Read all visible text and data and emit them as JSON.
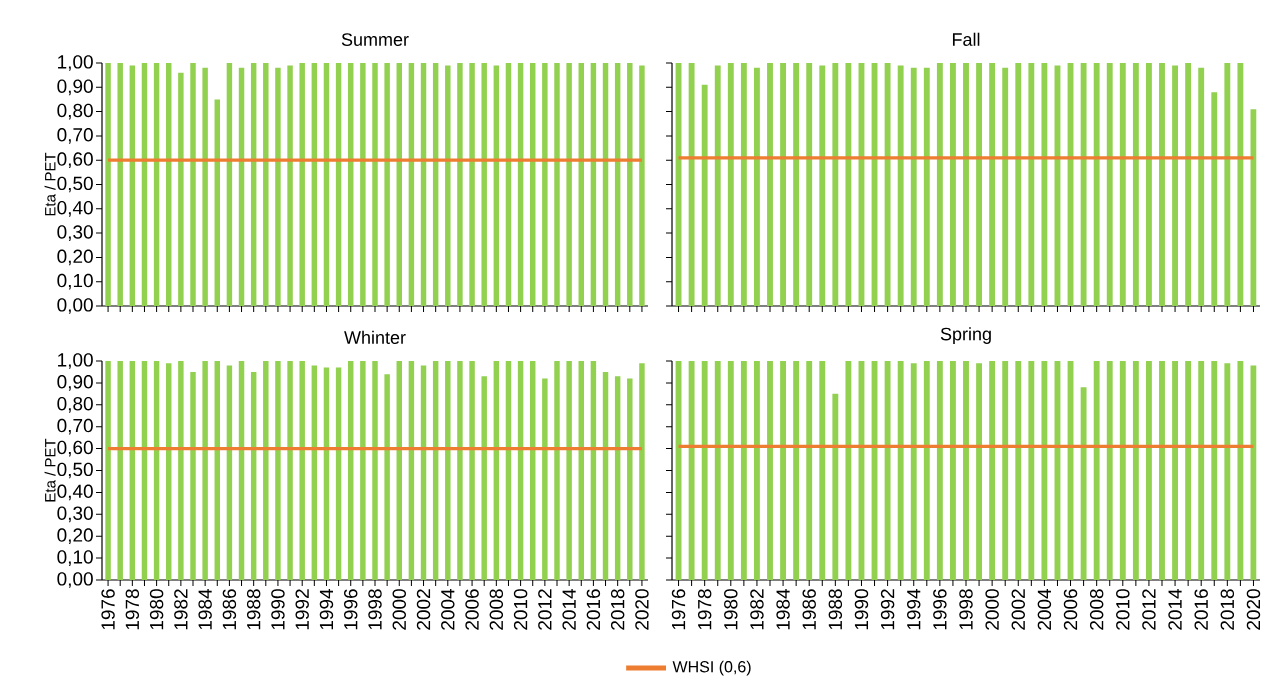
{
  "chart_data": [
    {
      "type": "bar",
      "title": "Summer",
      "ylabel": "Eta / PET",
      "tick_labels": "y",
      "categories": [
        "1976",
        null,
        "1978",
        null,
        "1980",
        null,
        "1982",
        null,
        "1984",
        null,
        "1986",
        null,
        "1988",
        null,
        "1990",
        null,
        "1992",
        null,
        "1994",
        null,
        "1996",
        null,
        "1998",
        null,
        "2000",
        null,
        "2002",
        null,
        "2004",
        null,
        "2006",
        null,
        "2008",
        null,
        "2010",
        null,
        "2012",
        null,
        "2014",
        null,
        "2016",
        null,
        "2018",
        null,
        "2020"
      ],
      "ylim": [
        0,
        1
      ],
      "yticks": [
        {
          "value": 0,
          "label": "0,00"
        },
        {
          "value": 0.1,
          "label": "0,10"
        },
        {
          "value": 0.2,
          "label": "0,20"
        },
        {
          "value": 0.3,
          "label": "0,30"
        },
        {
          "value": 0.4,
          "label": "0,40"
        },
        {
          "value": 0.5,
          "label": "0,50"
        },
        {
          "value": 0.6,
          "label": "0,60"
        },
        {
          "value": 0.7,
          "label": "0,70"
        },
        {
          "value": 0.8,
          "label": "0,80"
        },
        {
          "value": 0.9,
          "label": "0,90"
        },
        {
          "value": 1,
          "label": "1,00"
        }
      ],
      "series": [
        {
          "color": "#92d050",
          "values": [
            1,
            1,
            0.99,
            1,
            1,
            1,
            0.96,
            1,
            0.98,
            0.85,
            1,
            0.98,
            1,
            1,
            0.98,
            0.99,
            1,
            1,
            1,
            1,
            1,
            1,
            1,
            1,
            1,
            1,
            1,
            1,
            0.99,
            1,
            1,
            1,
            0.99,
            1,
            1,
            1,
            1,
            1,
            1,
            1,
            1,
            1,
            1,
            1,
            0.99
          ]
        },
        {
          "type": "line",
          "color": "#ed7d31",
          "values": [
            0.6,
            0.6,
            0.6,
            0.6,
            0.6,
            0.6,
            0.6,
            0.6,
            0.6,
            0.6,
            0.6,
            0.6,
            0.6,
            0.6,
            0.6,
            0.6,
            0.6,
            0.6,
            0.6,
            0.6,
            0.6,
            0.6,
            0.6,
            0.6,
            0.6,
            0.6,
            0.6,
            0.6,
            0.6,
            0.6,
            0.6,
            0.6,
            0.6,
            0.6,
            0.6,
            0.6,
            0.6,
            0.6,
            0.6,
            0.6,
            0.6,
            0.6,
            0.6,
            0.6,
            0.6
          ]
        }
      ]
    },
    {
      "type": "bar",
      "title": "Fall",
      "tick_labels": false,
      "categories": [
        "1976",
        null,
        "1978",
        null,
        "1980",
        null,
        "1982",
        null,
        "1984",
        null,
        "1986",
        null,
        "1988",
        null,
        "1990",
        null,
        "1992",
        null,
        "1994",
        null,
        "1996",
        null,
        "1998",
        null,
        "2000",
        null,
        "2002",
        null,
        "2004",
        null,
        "2006",
        null,
        "2008",
        null,
        "2010",
        null,
        "2012",
        null,
        "2014",
        null,
        "2016",
        null,
        "2018",
        null,
        "2020"
      ],
      "ylim": [
        0,
        1
      ],
      "yticks": [
        {
          "value": 0,
          "label": null
        },
        {
          "value": 0.1,
          "label": null
        },
        {
          "value": 0.2,
          "label": null
        },
        {
          "value": 0.3,
          "label": null
        },
        {
          "value": 0.4,
          "label": null
        },
        {
          "value": 0.5,
          "label": null
        },
        {
          "value": 0.6,
          "label": null
        },
        {
          "value": 0.7,
          "label": null
        },
        {
          "value": 0.8,
          "label": null
        },
        {
          "value": 0.9,
          "label": null
        },
        {
          "value": 1,
          "label": null
        }
      ],
      "series": [
        {
          "color": "#92d050",
          "values": [
            1,
            1,
            0.91,
            0.99,
            1,
            1,
            0.98,
            1,
            1,
            1,
            1,
            0.99,
            1,
            1,
            1,
            1,
            1,
            0.99,
            0.98,
            0.98,
            1,
            1,
            1,
            1,
            1,
            0.98,
            1,
            1,
            1,
            0.99,
            1,
            1,
            1,
            1,
            1,
            1,
            1,
            1,
            0.99,
            1,
            0.98,
            0.88,
            1,
            1,
            0.81
          ]
        },
        {
          "type": "line",
          "color": "#ed7d31",
          "values": [
            0.61,
            0.61,
            0.61,
            0.61,
            0.61,
            0.61,
            0.61,
            0.61,
            0.61,
            0.61,
            0.61,
            0.61,
            0.61,
            0.61,
            0.61,
            0.61,
            0.61,
            0.61,
            0.61,
            0.61,
            0.61,
            0.61,
            0.61,
            0.61,
            0.61,
            0.61,
            0.61,
            0.61,
            0.61,
            0.61,
            0.61,
            0.61,
            0.61,
            0.61,
            0.61,
            0.61,
            0.61,
            0.61,
            0.61,
            0.61,
            0.61,
            0.61,
            0.61,
            0.61,
            0.61
          ]
        }
      ]
    },
    {
      "type": "bar",
      "title": "Whinter",
      "ylabel": "Eta / PET",
      "categories": [
        "1976",
        null,
        "1978",
        null,
        "1980",
        null,
        "1982",
        null,
        "1984",
        null,
        "1986",
        null,
        "1988",
        null,
        "1990",
        null,
        "1992",
        null,
        "1994",
        null,
        "1996",
        null,
        "1998",
        null,
        "2000",
        null,
        "2002",
        null,
        "2004",
        null,
        "2006",
        null,
        "2008",
        null,
        "2010",
        null,
        "2012",
        null,
        "2014",
        null,
        "2016",
        null,
        "2018",
        null,
        "2020"
      ],
      "ylim": [
        0,
        1
      ],
      "yticks": [
        {
          "value": 0,
          "label": "0,00"
        },
        {
          "value": 0.1,
          "label": "0,10"
        },
        {
          "value": 0.2,
          "label": "0,20"
        },
        {
          "value": 0.3,
          "label": "0,30"
        },
        {
          "value": 0.4,
          "label": "0,40"
        },
        {
          "value": 0.5,
          "label": "0,50"
        },
        {
          "value": 0.6,
          "label": "0,60"
        },
        {
          "value": 0.7,
          "label": "0,70"
        },
        {
          "value": 0.8,
          "label": "0,80"
        },
        {
          "value": 0.9,
          "label": "0,90"
        },
        {
          "value": 1,
          "label": "1,00"
        }
      ],
      "series": [
        {
          "color": "#92d050",
          "values": [
            1,
            1,
            1,
            1,
            1,
            0.99,
            1,
            0.95,
            1,
            1,
            0.98,
            1,
            0.95,
            1,
            1,
            1,
            1,
            0.98,
            0.97,
            0.97,
            1,
            1,
            1,
            0.94,
            1,
            1,
            0.98,
            1,
            1,
            1,
            1,
            0.93,
            1,
            1,
            1,
            1,
            0.92,
            1,
            1,
            1,
            1,
            0.95,
            0.93,
            0.92,
            0.99
          ]
        },
        {
          "type": "line",
          "color": "#ed7d31",
          "values": [
            0.6,
            0.6,
            0.6,
            0.6,
            0.6,
            0.6,
            0.6,
            0.6,
            0.6,
            0.6,
            0.6,
            0.6,
            0.6,
            0.6,
            0.6,
            0.6,
            0.6,
            0.6,
            0.6,
            0.6,
            0.6,
            0.6,
            0.6,
            0.6,
            0.6,
            0.6,
            0.6,
            0.6,
            0.6,
            0.6,
            0.6,
            0.6,
            0.6,
            0.6,
            0.6,
            0.6,
            0.6,
            0.6,
            0.6,
            0.6,
            0.6,
            0.6,
            0.6,
            0.6,
            0.6
          ]
        }
      ]
    },
    {
      "type": "bar",
      "title": "Spring",
      "tick_labels": "x",
      "legend": "bottom",
      "categories": [
        "1976",
        null,
        "1978",
        null,
        "1980",
        null,
        "1982",
        null,
        "1984",
        null,
        "1986",
        null,
        "1988",
        null,
        "1990",
        null,
        "1992",
        null,
        "1994",
        null,
        "1996",
        null,
        "1998",
        null,
        "2000",
        null,
        "2002",
        null,
        "2004",
        null,
        "2006",
        null,
        "2008",
        null,
        "2010",
        null,
        "2012",
        null,
        "2014",
        null,
        "2016",
        null,
        "2018",
        null,
        "2020"
      ],
      "ylim": [
        0,
        1
      ],
      "yticks": [
        {
          "value": 0,
          "label": null
        },
        {
          "value": 0.1,
          "label": null
        },
        {
          "value": 0.2,
          "label": null
        },
        {
          "value": 0.3,
          "label": null
        },
        {
          "value": 0.4,
          "label": null
        },
        {
          "value": 0.5,
          "label": null
        },
        {
          "value": 0.6,
          "label": null
        },
        {
          "value": 0.7,
          "label": null
        },
        {
          "value": 0.8,
          "label": null
        },
        {
          "value": 0.9,
          "label": null
        },
        {
          "value": 1,
          "label": null
        }
      ],
      "series": [
        {
          "color": "#92d050",
          "values": [
            1,
            1,
            1,
            1,
            1,
            1,
            1,
            1,
            1,
            1,
            1,
            1,
            0.85,
            1,
            1,
            1,
            1,
            1,
            0.99,
            1,
            1,
            1,
            1,
            0.99,
            1,
            1,
            1,
            1,
            1,
            1,
            1,
            0.88,
            1,
            1,
            1,
            1,
            1,
            1,
            1,
            1,
            1,
            1,
            0.99,
            1,
            0.98
          ]
        },
        {
          "type": "line",
          "color": "#ed7d31",
          "name": "WHSI (0,6)",
          "values": [
            0.61,
            0.61,
            0.61,
            0.61,
            0.61,
            0.61,
            0.61,
            0.61,
            0.61,
            0.61,
            0.61,
            0.61,
            0.61,
            0.61,
            0.61,
            0.61,
            0.61,
            0.61,
            0.61,
            0.61,
            0.61,
            0.61,
            0.61,
            0.61,
            0.61,
            0.61,
            0.61,
            0.61,
            0.61,
            0.61,
            0.61,
            0.61,
            0.61,
            0.61,
            0.61,
            0.61,
            0.61,
            0.61,
            0.61,
            0.61,
            0.61,
            0.61,
            0.61,
            0.61,
            0.61
          ]
        }
      ]
    }
  ]
}
